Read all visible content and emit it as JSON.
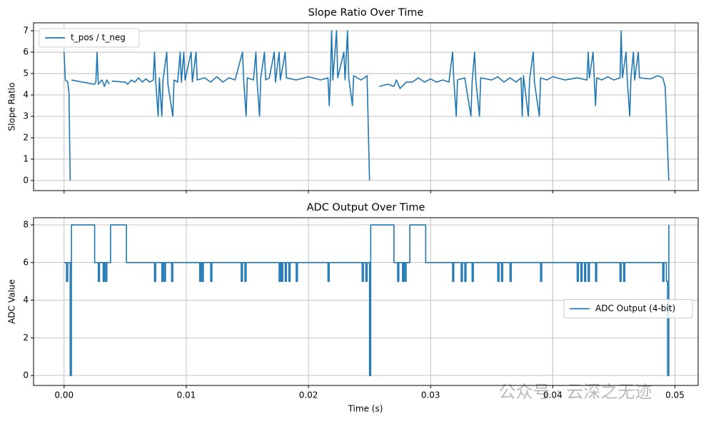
{
  "chart_data": [
    {
      "type": "line",
      "title": "Slope Ratio Over Time",
      "ylabel": "Slope Ratio",
      "x": [
        0,
        0.0001,
        0.0003,
        0.0004,
        0.0005,
        0.00055,
        0.0006,
        0.0015,
        0.0025,
        0.0026,
        0.0027,
        0.0028,
        0.0031,
        0.0033,
        0.0035,
        0.0037,
        0.0038,
        0.0039,
        0.005,
        0.0052,
        0.0055,
        0.0058,
        0.0061,
        0.0064,
        0.0067,
        0.007,
        0.0073,
        0.0074,
        0.0075,
        0.0077,
        0.0078,
        0.008,
        0.0081,
        0.0084,
        0.0085,
        0.0089,
        0.009,
        0.0093,
        0.0095,
        0.0096,
        0.0098,
        0.0099,
        0.0104,
        0.0105,
        0.0108,
        0.0109,
        0.0115,
        0.012,
        0.0125,
        0.013,
        0.0135,
        0.014,
        0.0146,
        0.0147,
        0.0149,
        0.015,
        0.0155,
        0.0157,
        0.0158,
        0.016,
        0.0161,
        0.0164,
        0.0165,
        0.0168,
        0.0172,
        0.0173,
        0.0176,
        0.0177,
        0.0181,
        0.0182,
        0.019,
        0.02,
        0.021,
        0.0216,
        0.0217,
        0.0218,
        0.0219,
        0.022,
        0.0223,
        0.0224,
        0.0229,
        0.023,
        0.0232,
        0.0233,
        0.0236,
        0.0237,
        0.0243,
        0.0248,
        0.025,
        0.0255,
        0.0258,
        0.0265,
        0.027,
        0.0272,
        0.0275,
        0.028,
        0.0285,
        0.029,
        0.0295,
        0.03,
        0.0305,
        0.031,
        0.0315,
        0.0318,
        0.0319,
        0.0321,
        0.0322,
        0.0328,
        0.0333,
        0.0334,
        0.0336,
        0.0337,
        0.034,
        0.0341,
        0.035,
        0.0355,
        0.036,
        0.0365,
        0.037,
        0.0374,
        0.0375,
        0.0376,
        0.038,
        0.0381,
        0.0384,
        0.0385,
        0.0389,
        0.039,
        0.0395,
        0.04,
        0.041,
        0.042,
        0.0428,
        0.0429,
        0.043,
        0.0433,
        0.0434,
        0.0435,
        0.0436,
        0.044,
        0.0445,
        0.045,
        0.0455,
        0.0456,
        0.0457,
        0.046,
        0.0461,
        0.0463,
        0.0464,
        0.0466,
        0.0467,
        0.047,
        0.0471,
        0.048,
        0.0486,
        0.049,
        0.0492,
        0.0495
      ],
      "series": [
        {
          "name": "t_pos / t_neg",
          "color": "#1f77b4",
          "values": [
            6,
            4.7,
            4.6,
            4.1,
            0,
            null,
            4.7,
            4.6,
            4.5,
            4.6,
            6,
            4.5,
            4.7,
            4.4,
            4.7,
            4.5,
            null,
            4.65,
            4.6,
            4.5,
            4.7,
            4.6,
            4.8,
            4.6,
            4.75,
            4.6,
            4.7,
            6,
            4.6,
            3,
            4.8,
            3,
            4.7,
            6,
            4.5,
            3,
            4.7,
            4.6,
            6,
            4.6,
            6,
            4.7,
            6,
            4.6,
            6,
            4.7,
            4.8,
            4.6,
            4.85,
            4.6,
            4.8,
            4.7,
            6,
            4.7,
            3,
            4.8,
            4.7,
            6,
            4.6,
            3,
            4.8,
            6,
            4.7,
            4.8,
            6,
            4.6,
            6,
            4.7,
            6,
            4.8,
            4.7,
            4.85,
            4.7,
            4.8,
            3.5,
            4.8,
            7,
            4.7,
            7,
            4.8,
            6,
            4.7,
            7,
            4.8,
            3.5,
            4.9,
            4.7,
            4.9,
            0,
            null,
            4.4,
            4.5,
            4.4,
            4.7,
            4.3,
            4.6,
            4.6,
            4.8,
            4.6,
            4.75,
            4.6,
            4.7,
            4.6,
            6,
            4.7,
            3,
            4.7,
            4.8,
            3,
            4.6,
            6,
            4.7,
            3,
            4.8,
            4.7,
            4.85,
            4.6,
            4.8,
            4.6,
            4.8,
            3,
            4.9,
            3,
            4.7,
            6,
            4.6,
            3,
            4.8,
            4.7,
            4.85,
            4.7,
            4.8,
            4.7,
            6,
            4.8,
            6,
            4.7,
            3.5,
            4.8,
            4.7,
            4.85,
            4.7,
            4.8,
            7,
            4.8,
            6,
            4.7,
            3,
            4.8,
            6,
            4.7,
            6,
            4.8,
            4.75,
            4.9,
            4.8,
            4.4,
            0
          ]
        }
      ],
      "xlim": [
        -0.0025,
        0.0519
      ],
      "xticks": [
        0,
        0.01,
        0.02,
        0.03,
        0.04,
        0.05
      ],
      "ylim": [
        -0.47,
        7.37
      ],
      "yticks": [
        0,
        1,
        2,
        3,
        4,
        5,
        6,
        7
      ],
      "grid": true,
      "legend": "upper-left"
    },
    {
      "type": "step",
      "title": "ADC Output Over Time",
      "ylabel": "ADC Value",
      "xlabel": "Time (s)",
      "x": [
        0,
        0.0002,
        0.0003,
        0.0005,
        0.0006,
        0.0025,
        0.0028,
        0.0029,
        0.0032,
        0.0033,
        0.0034,
        0.0035,
        0.0038,
        0.0051,
        0.0074,
        0.0075,
        0.008,
        0.0081,
        0.0082,
        0.0083,
        0.0088,
        0.0089,
        0.0111,
        0.0112,
        0.0113,
        0.0114,
        0.012,
        0.0121,
        0.0145,
        0.0146,
        0.0148,
        0.0149,
        0.0176,
        0.0177,
        0.0178,
        0.0179,
        0.0181,
        0.0182,
        0.0184,
        0.0185,
        0.019,
        0.0191,
        0.0216,
        0.0217,
        0.0244,
        0.0245,
        0.0247,
        0.0248,
        0.025,
        0.0251,
        0.027,
        0.0273,
        0.0274,
        0.0277,
        0.0278,
        0.0279,
        0.028,
        0.0283,
        0.0296,
        0.0318,
        0.0319,
        0.0325,
        0.0326,
        0.0328,
        0.0329,
        0.0334,
        0.0335,
        0.0355,
        0.0356,
        0.0358,
        0.0359,
        0.0365,
        0.0366,
        0.039,
        0.0391,
        0.042,
        0.0421,
        0.0423,
        0.0424,
        0.0426,
        0.0427,
        0.0429,
        0.043,
        0.0435,
        0.0436,
        0.0455,
        0.0456,
        0.0458,
        0.0459,
        0.049,
        0.0491,
        0.0493,
        0.0494,
        0.0495
      ],
      "series": [
        {
          "name": "ADC Output (4-bit)",
          "color": "#1f77b4",
          "values": [
            6,
            5,
            6,
            0,
            8,
            6,
            5,
            6,
            5,
            6,
            5,
            6,
            8,
            6,
            5,
            6,
            5,
            6,
            5,
            6,
            5,
            6,
            5,
            6,
            5,
            6,
            5,
            6,
            5,
            6,
            5,
            6,
            5,
            6,
            5,
            6,
            5,
            6,
            5,
            6,
            5,
            6,
            5,
            6,
            5,
            6,
            5,
            6,
            0,
            8,
            6,
            5,
            6,
            5,
            6,
            5,
            6,
            8,
            6,
            5,
            6,
            5,
            6,
            5,
            6,
            5,
            6,
            5,
            6,
            5,
            6,
            5,
            6,
            5,
            6,
            5,
            6,
            5,
            6,
            5,
            6,
            5,
            6,
            5,
            6,
            5,
            6,
            5,
            6,
            5,
            6,
            5,
            0,
            8
          ]
        }
      ],
      "xlim": [
        -0.0025,
        0.0519
      ],
      "xticks": [
        {
          "value": 0,
          "label": "0.00"
        },
        {
          "value": 0.01,
          "label": "0.01"
        },
        {
          "value": 0.02,
          "label": "0.02"
        },
        {
          "value": 0.03,
          "label": "0.03"
        },
        {
          "value": 0.04,
          "label": "0.04"
        },
        {
          "value": 0.05,
          "label": "0.05"
        }
      ],
      "ylim": [
        -0.53,
        8.38
      ],
      "yticks": [
        0,
        2,
        4,
        6,
        8
      ],
      "grid": true,
      "legend": "center-right"
    }
  ],
  "watermark": "公众号 · 云深之无迹"
}
